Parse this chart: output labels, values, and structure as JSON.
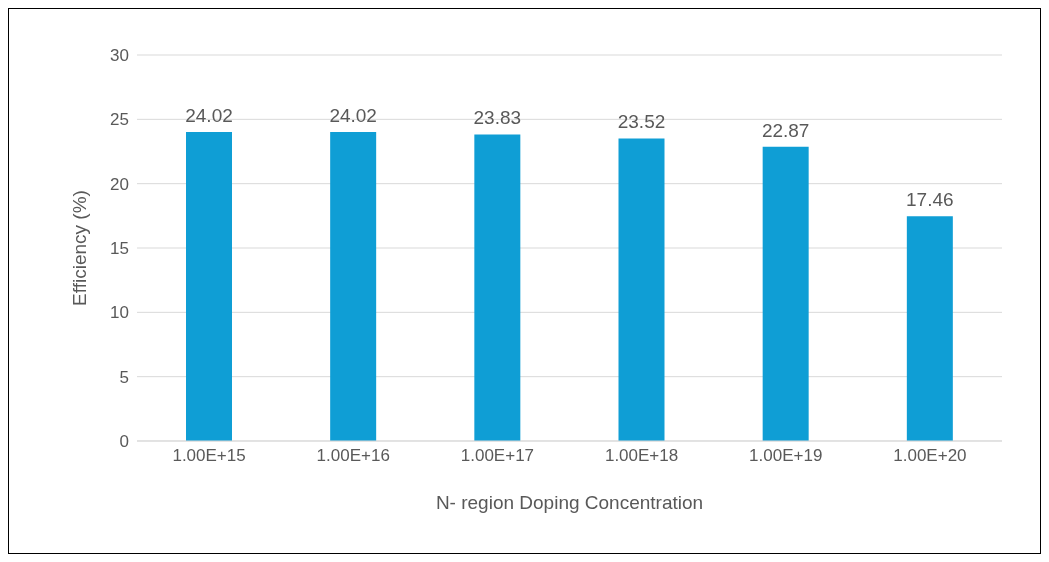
{
  "chart_data": {
    "type": "bar",
    "xlabel": "N- region Doping Concentration",
    "ylabel": "Efficiency (%)",
    "categories": [
      "1.00E+15",
      "1.00E+16",
      "1.00E+17",
      "1.00E+18",
      "1.00E+19",
      "1.00E+20"
    ],
    "values": [
      24.02,
      24.02,
      23.83,
      23.52,
      22.87,
      17.46
    ],
    "color": "#0f9ed5",
    "ylim": [
      0,
      30
    ],
    "yticks": [
      0,
      5,
      10,
      15,
      20,
      25,
      30
    ],
    "grid": "y",
    "data_labels": true
  }
}
